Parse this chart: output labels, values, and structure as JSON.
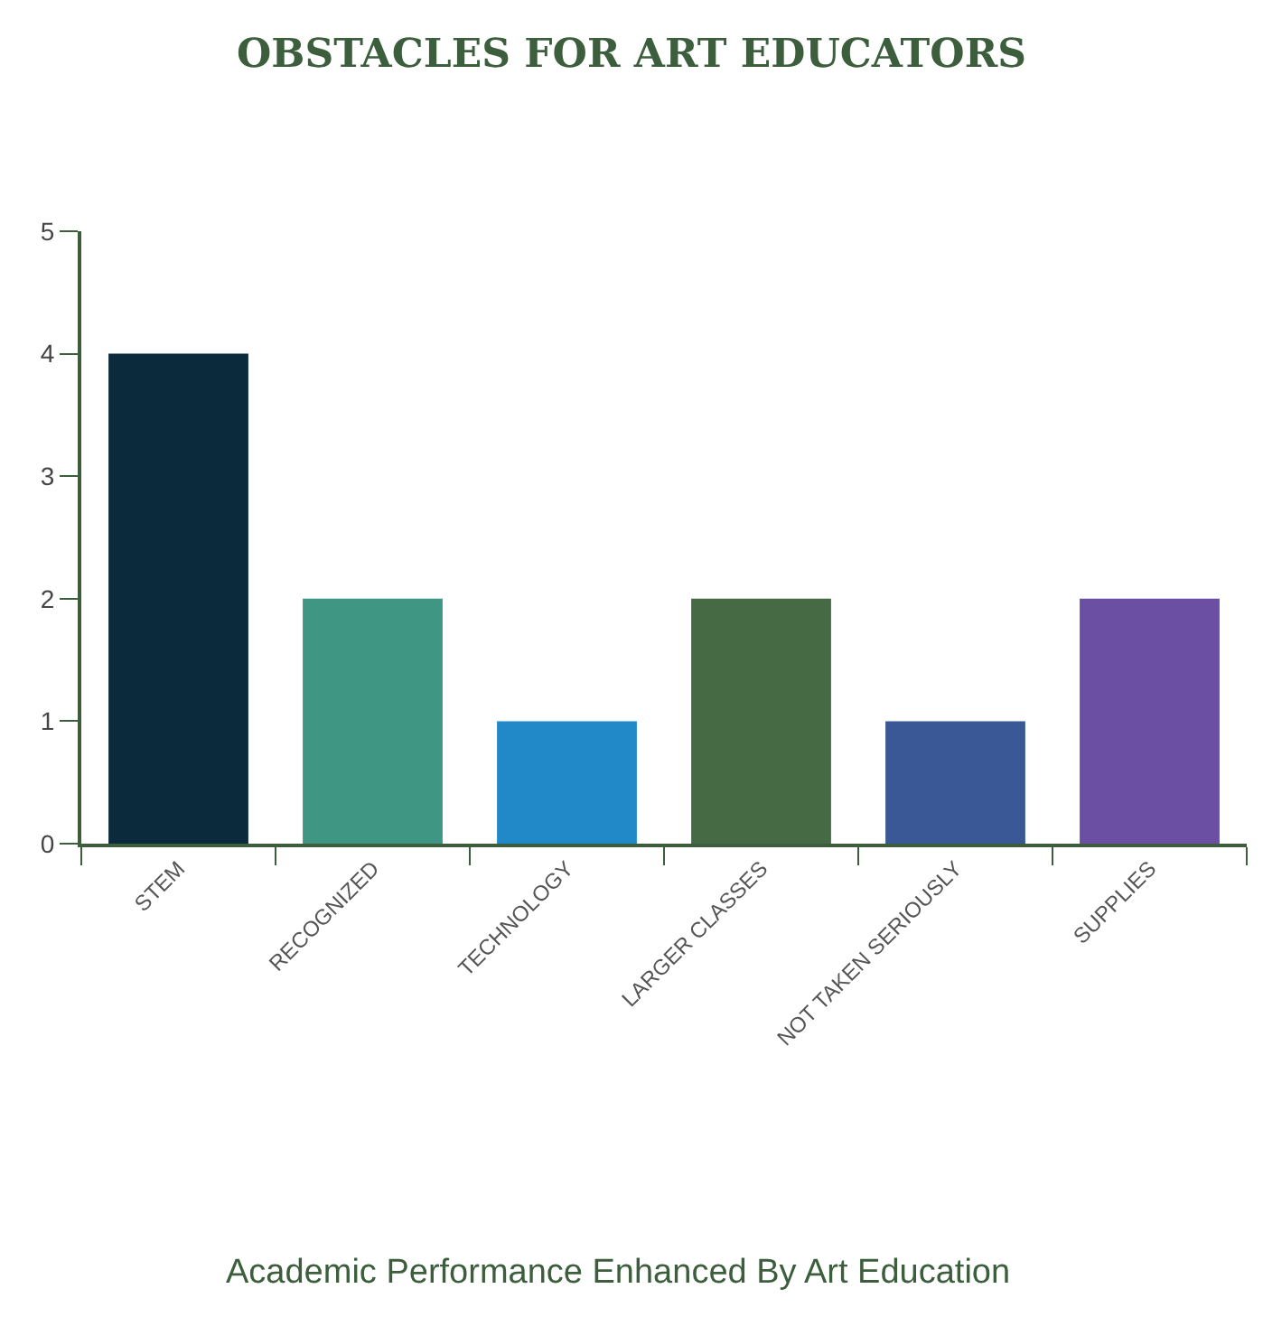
{
  "chart_data": {
    "type": "bar",
    "title": "OBSTACLES FOR ART EDUCATORS",
    "categories": [
      "STEM",
      "RECOGNIZED",
      "TECHNOLOGY",
      "LARGER CLASSES",
      "NOT TAKEN SERIOUSLY",
      "SUPPLIES"
    ],
    "values": [
      4,
      2,
      1,
      2,
      1,
      2
    ],
    "colors": [
      "#0b2a3c",
      "#3f9683",
      "#2189c8",
      "#456a44",
      "#3a5896",
      "#6a4fa3"
    ],
    "ylim": [
      0,
      5
    ],
    "yticks": [
      0,
      1,
      2,
      3,
      4,
      5
    ],
    "annotations": [
      "Academic Performance Enhanced By Art Education"
    ]
  }
}
